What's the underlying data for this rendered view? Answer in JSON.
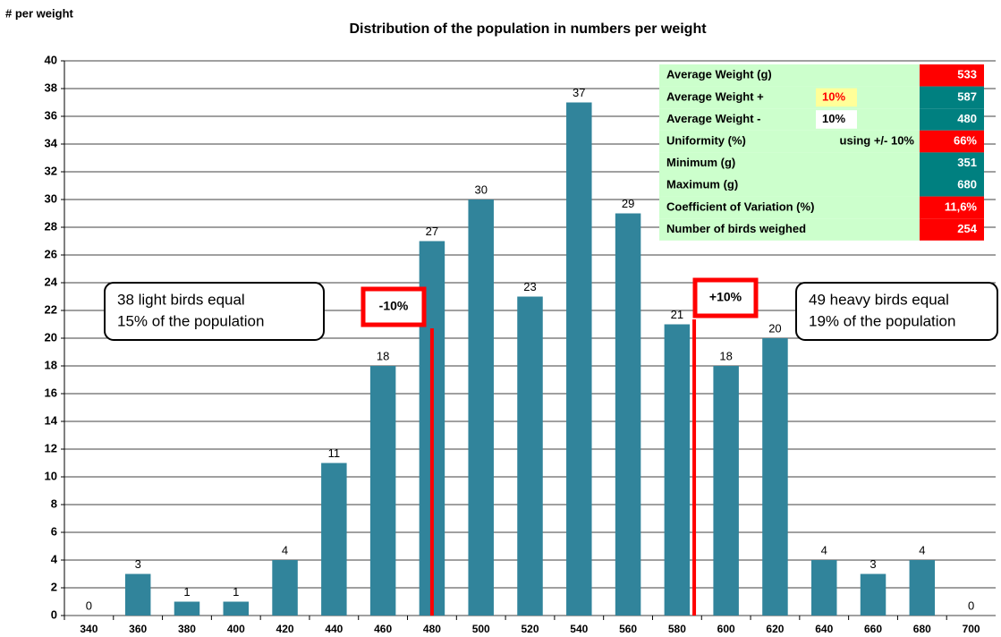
{
  "chart_data": {
    "type": "bar",
    "title": "Distribution of the population in numbers per weight",
    "ylabel": "# per weight",
    "categories": [
      "340",
      "360",
      "380",
      "400",
      "420",
      "440",
      "460",
      "480",
      "500",
      "520",
      "540",
      "560",
      "580",
      "600",
      "620",
      "640",
      "660",
      "680",
      "700"
    ],
    "values": [
      0,
      3,
      1,
      1,
      4,
      11,
      18,
      27,
      30,
      23,
      37,
      29,
      21,
      18,
      20,
      4,
      3,
      4,
      0
    ],
    "color": "#31849b",
    "ylim": [
      0,
      40
    ],
    "yticks": [
      0,
      2,
      4,
      6,
      8,
      10,
      12,
      14,
      16,
      18,
      20,
      22,
      24,
      26,
      28,
      30,
      32,
      34,
      36,
      38,
      40
    ],
    "grid": true
  },
  "stats": {
    "rows": [
      {
        "label": "Average Weight (g)",
        "param": "",
        "value": "533",
        "color": "#ff0000"
      },
      {
        "label": "Average Weight +",
        "param": "10%",
        "value": "587",
        "color": "#008080"
      },
      {
        "label": "Average Weight -",
        "param": "10%",
        "value": "480",
        "color": "#008080"
      },
      {
        "label": "Uniformity (%)",
        "param": "using +/- 10%",
        "value": "66%",
        "color": "#ff0000"
      },
      {
        "label": "Minimum (g)",
        "param": "",
        "value": "351",
        "color": "#008080"
      },
      {
        "label": "Maximum (g)",
        "param": "",
        "value": "680",
        "color": "#008080"
      },
      {
        "label": "Coefficient of Variation (%)",
        "param": "",
        "value": "11,6%",
        "color": "#ff0000"
      },
      {
        "label": "Number of birds weighed",
        "param": "",
        "value": "254",
        "color": "#ff0000"
      }
    ]
  },
  "annotations": {
    "left": [
      "38 light birds equal",
      "15% of the population"
    ],
    "right": [
      "49 heavy birds equal",
      "19% of the population"
    ],
    "minus": "-10%",
    "plus": "+10%"
  }
}
